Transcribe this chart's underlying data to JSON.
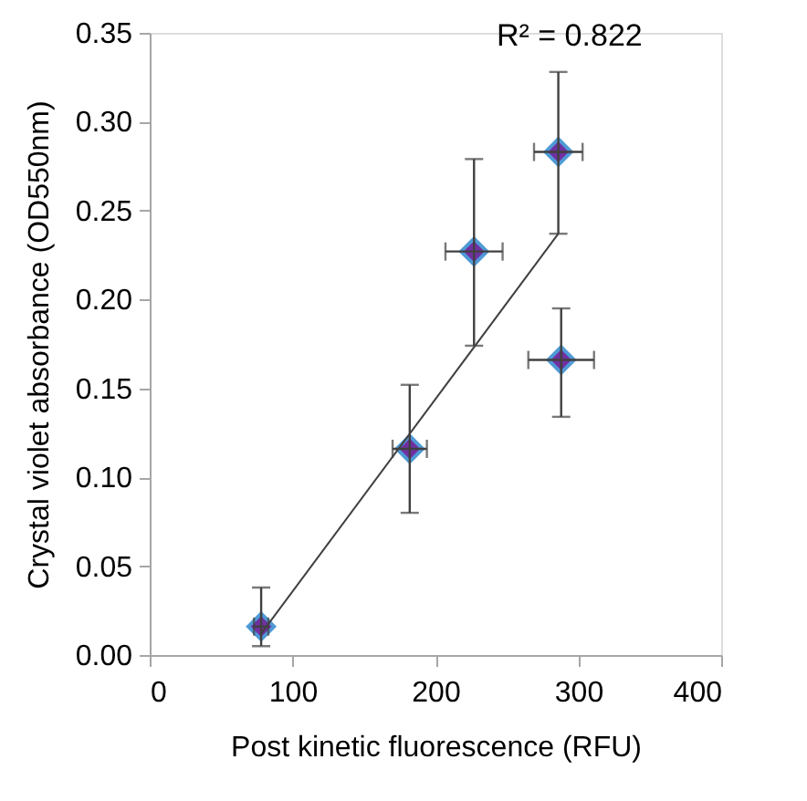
{
  "chart_data": {
    "type": "scatter",
    "xlabel": "Post kinetic fluorescence (RFU)",
    "ylabel": "Crystal violet absorbance (OD550nm)",
    "annotations": [
      "R² = 0.822"
    ],
    "xlim": [
      0,
      400
    ],
    "xticks": [
      0,
      100,
      200,
      300,
      400
    ],
    "ylim": [
      0,
      0.35
    ],
    "yticks": [
      {
        "value": 0,
        "label": "0.00"
      },
      {
        "value": 0.05,
        "label": "0.05"
      },
      {
        "value": 0.1,
        "label": "0.10"
      },
      {
        "value": 0.15,
        "label": "0.15"
      },
      {
        "value": 0.2,
        "label": "0.20"
      },
      {
        "value": 0.25,
        "label": "0.25"
      },
      {
        "value": 0.3,
        "label": "0.30"
      },
      {
        "value": 0.35,
        "label": "0.35"
      }
    ],
    "grid": false,
    "series": [
      {
        "color": "#7030a0",
        "marker": "diamond",
        "x": [
          78,
          182,
          227,
          286,
          288
        ],
        "values": [
          0.016,
          0.116,
          0.227,
          0.283,
          0.166
        ],
        "errors": [
          [
            0.005,
            0.038
          ],
          [
            0.08,
            0.152
          ],
          [
            0.174,
            0.279
          ],
          [
            0.237,
            0.328
          ],
          [
            0.134,
            0.195
          ]
        ],
        "xerrors": [
          5,
          12,
          20,
          17,
          23
        ]
      },
      {
        "type": "line",
        "color": "#404040",
        "x": [
          78,
          286
        ],
        "values": [
          0.012,
          0.237
        ],
        "line_style": "solid"
      }
    ]
  }
}
